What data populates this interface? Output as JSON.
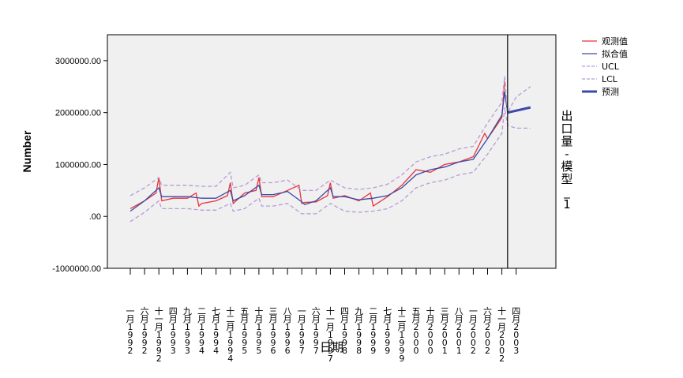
{
  "chart_data": {
    "type": "line",
    "title": "",
    "ylabel": "Number",
    "xlabel": "日期",
    "panel_label": "出口量-模型_1",
    "ylim": [
      -1000000,
      3500000
    ],
    "y_ticks": [
      {
        "value": 3000000,
        "label": "3000000.00"
      },
      {
        "value": 2000000,
        "label": "2000000.00"
      },
      {
        "value": 1000000,
        "label": "1000000.00"
      },
      {
        "value": 0,
        "label": ".00"
      },
      {
        "value": -1000000,
        "label": "-1000000.00"
      }
    ],
    "x_range_months": [
      0,
      147
    ],
    "x_ticks": [
      {
        "m": 0,
        "label": "一月 1992"
      },
      {
        "m": 5,
        "label": "六月 1992"
      },
      {
        "m": 10,
        "label": "十一月 1992"
      },
      {
        "m": 15,
        "label": "四月 1993"
      },
      {
        "m": 20,
        "label": "九月 1993"
      },
      {
        "m": 25,
        "label": "二月 1994"
      },
      {
        "m": 30,
        "label": "七月 1994"
      },
      {
        "m": 35,
        "label": "十二月 1994"
      },
      {
        "m": 40,
        "label": "五月 1995"
      },
      {
        "m": 45,
        "label": "十月 1995"
      },
      {
        "m": 50,
        "label": "三月 1996"
      },
      {
        "m": 55,
        "label": "八月 1996"
      },
      {
        "m": 60,
        "label": "一月 1997"
      },
      {
        "m": 65,
        "label": "六月 1997"
      },
      {
        "m": 70,
        "label": "十一月 1997"
      },
      {
        "m": 75,
        "label": "四月 1998"
      },
      {
        "m": 80,
        "label": "九月 1998"
      },
      {
        "m": 85,
        "label": "二月 1999"
      },
      {
        "m": 90,
        "label": "七月 1999"
      },
      {
        "m": 95,
        "label": "十二月 1999"
      },
      {
        "m": 100,
        "label": "五月 2000"
      },
      {
        "m": 105,
        "label": "十月 2000"
      },
      {
        "m": 110,
        "label": "三月 2001"
      },
      {
        "m": 115,
        "label": "八月 2001"
      },
      {
        "m": 120,
        "label": "一月 2002"
      },
      {
        "m": 125,
        "label": "六月 2002"
      },
      {
        "m": 130,
        "label": "十一月 2002"
      },
      {
        "m": 135,
        "label": "四月 2003"
      }
    ],
    "forecast_start_month": 132,
    "grid": false,
    "legend_position": "right",
    "series": [
      {
        "name": "观测值",
        "color": "#e8333b",
        "style": "solid",
        "x": [
          0,
          5,
          9,
          10,
          11,
          15,
          20,
          23,
          24,
          25,
          30,
          34,
          35,
          36,
          40,
          44,
          45,
          46,
          50,
          55,
          59,
          60,
          61,
          65,
          69,
          70,
          71,
          75,
          80,
          84,
          85,
          90,
          95,
          100,
          105,
          110,
          115,
          120,
          124,
          125,
          130,
          131
        ],
        "y": [
          150000,
          300000,
          450000,
          750000,
          300000,
          350000,
          350000,
          450000,
          200000,
          250000,
          300000,
          400000,
          650000,
          250000,
          450000,
          500000,
          750000,
          380000,
          380000,
          500000,
          600000,
          250000,
          270000,
          280000,
          400000,
          650000,
          350000,
          400000,
          300000,
          450000,
          200000,
          380000,
          600000,
          900000,
          850000,
          1000000,
          1050000,
          1150000,
          1600000,
          1500000,
          1900000,
          2600000
        ]
      },
      {
        "name": "拟合值",
        "color": "#3b4aa8",
        "style": "solid",
        "x": [
          0,
          5,
          10,
          11,
          15,
          20,
          25,
          30,
          35,
          36,
          40,
          45,
          46,
          50,
          55,
          60,
          61,
          65,
          70,
          71,
          75,
          80,
          85,
          90,
          95,
          100,
          105,
          110,
          115,
          120,
          125,
          130,
          131,
          132
        ],
        "y": [
          100000,
          300000,
          550000,
          380000,
          380000,
          380000,
          350000,
          350000,
          500000,
          300000,
          400000,
          600000,
          420000,
          420000,
          480000,
          280000,
          230000,
          300000,
          550000,
          380000,
          380000,
          320000,
          350000,
          400000,
          550000,
          800000,
          900000,
          950000,
          1050000,
          1100000,
          1500000,
          1950000,
          2400000,
          2000000
        ]
      },
      {
        "name": "UCL",
        "color": "#b79bd6",
        "style": "dashed",
        "x": [
          0,
          5,
          10,
          11,
          15,
          20,
          25,
          30,
          35,
          36,
          40,
          45,
          46,
          50,
          55,
          60,
          65,
          70,
          75,
          80,
          85,
          90,
          95,
          100,
          105,
          110,
          115,
          120,
          125,
          130,
          131,
          132,
          135,
          140
        ],
        "y": [
          400000,
          550000,
          750000,
          600000,
          600000,
          600000,
          580000,
          580000,
          850000,
          550000,
          600000,
          800000,
          650000,
          650000,
          700000,
          500000,
          500000,
          700000,
          550000,
          520000,
          550000,
          620000,
          800000,
          1050000,
          1150000,
          1200000,
          1300000,
          1350000,
          1800000,
          2200000,
          2700000,
          2000000,
          2300000,
          2500000
        ]
      },
      {
        "name": "LCL",
        "color": "#b79bd6",
        "style": "dashed",
        "x": [
          0,
          5,
          10,
          11,
          15,
          20,
          25,
          30,
          35,
          36,
          40,
          45,
          46,
          50,
          55,
          60,
          65,
          70,
          75,
          80,
          85,
          90,
          95,
          100,
          105,
          110,
          115,
          120,
          125,
          130,
          131,
          132,
          135,
          140
        ],
        "y": [
          -100000,
          80000,
          300000,
          150000,
          150000,
          150000,
          120000,
          120000,
          250000,
          100000,
          150000,
          350000,
          200000,
          200000,
          250000,
          50000,
          50000,
          250000,
          100000,
          80000,
          100000,
          150000,
          300000,
          550000,
          650000,
          700000,
          800000,
          850000,
          1200000,
          1600000,
          2100000,
          1750000,
          1700000,
          1700000
        ]
      },
      {
        "name": "预测",
        "color": "#3b4aa8",
        "style": "thick",
        "x": [
          132,
          140
        ],
        "y": [
          2000000,
          2100000
        ]
      }
    ]
  }
}
